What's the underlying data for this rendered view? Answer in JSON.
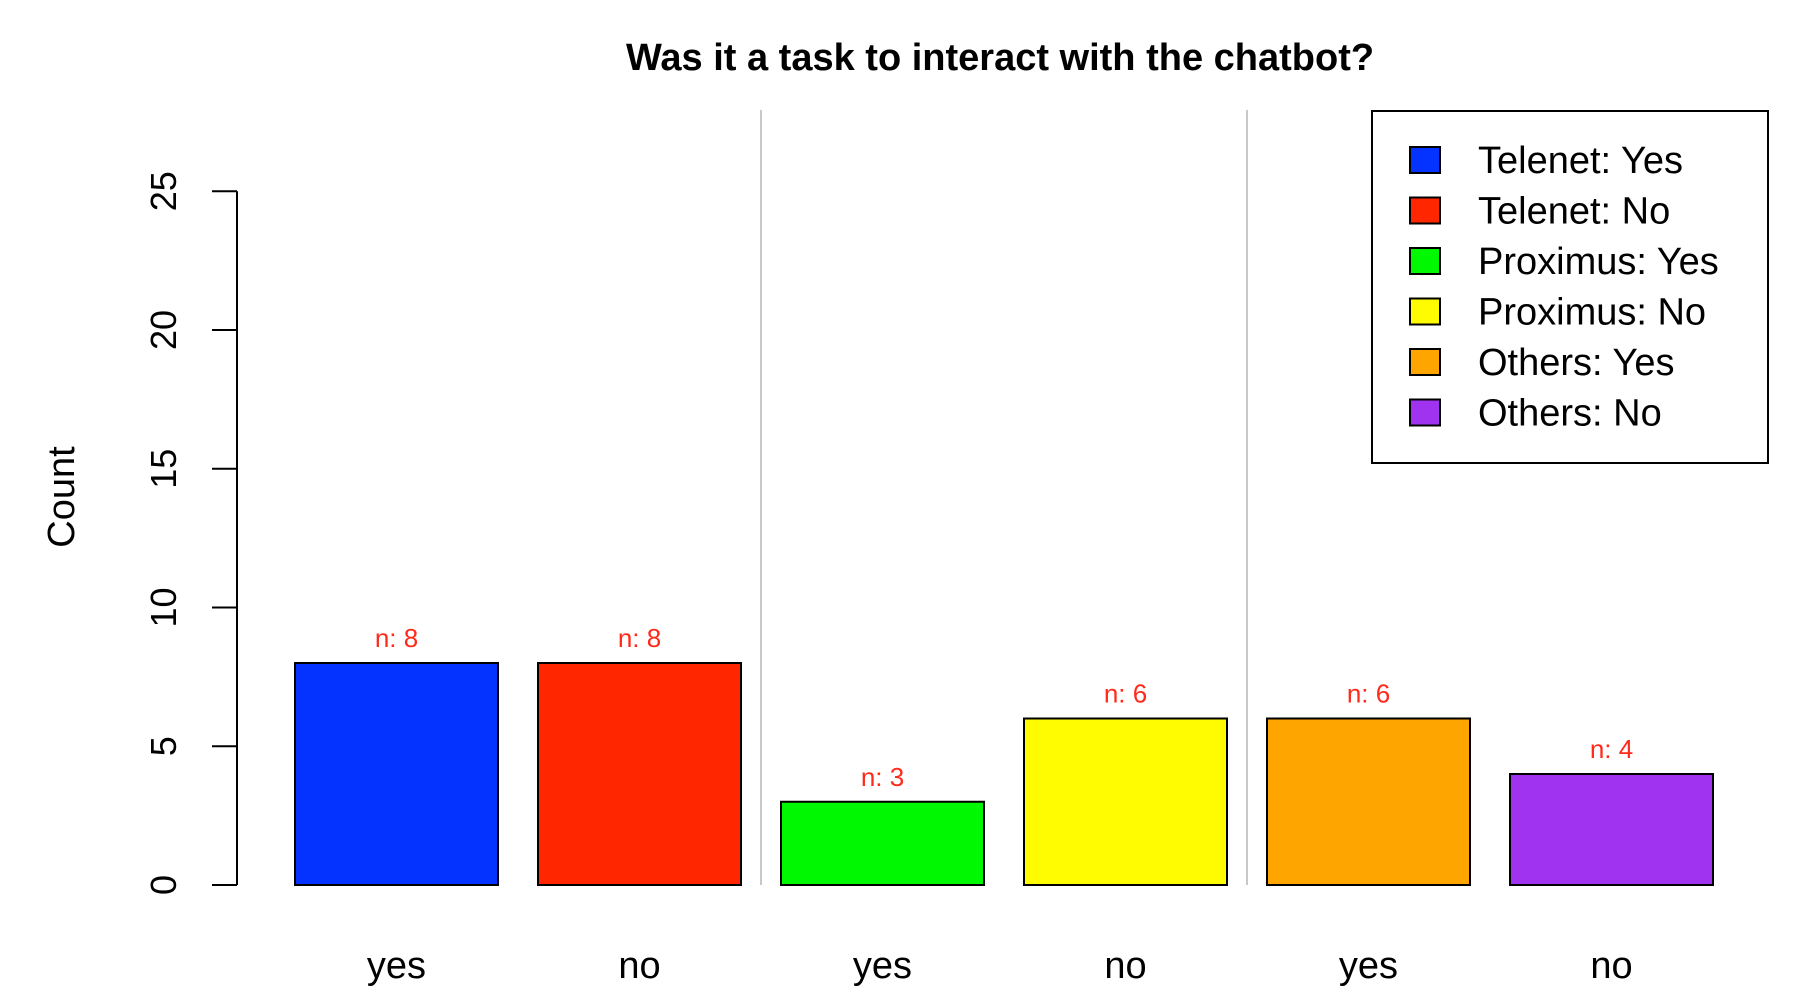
{
  "chart_data": {
    "type": "bar",
    "title": "Was it a task to interact with the chatbot?",
    "xlabel": "",
    "ylabel": "Count",
    "ylim": [
      0,
      25
    ],
    "yticks": [
      0,
      5,
      10,
      15,
      20,
      25
    ],
    "categories": [
      "yes",
      "no",
      "yes",
      "no",
      "yes",
      "no"
    ],
    "values": [
      8,
      8,
      3,
      6,
      6,
      4
    ],
    "data_labels": [
      "n: 8",
      "n: 8",
      "n: 3",
      "n: 6",
      "n: 6",
      "n: 4"
    ],
    "label_color": "#ff2a1a",
    "colors": [
      "#0433ff",
      "#ff2600",
      "#00f900",
      "#fffb00",
      "#ffa500",
      "#a033f0"
    ],
    "legend": {
      "placement": "top-right",
      "entries": [
        {
          "label": "Telenet: Yes",
          "color": "#0433ff"
        },
        {
          "label": "Telenet: No",
          "color": "#ff2600"
        },
        {
          "label": "Proximus: Yes",
          "color": "#00f900"
        },
        {
          "label": "Proximus: No",
          "color": "#fffb00"
        },
        {
          "label": "Others: Yes",
          "color": "#ffa500"
        },
        {
          "label": "Others: No",
          "color": "#a033f0"
        }
      ]
    },
    "group_separators_after": [
      1,
      3
    ],
    "grid": false
  }
}
